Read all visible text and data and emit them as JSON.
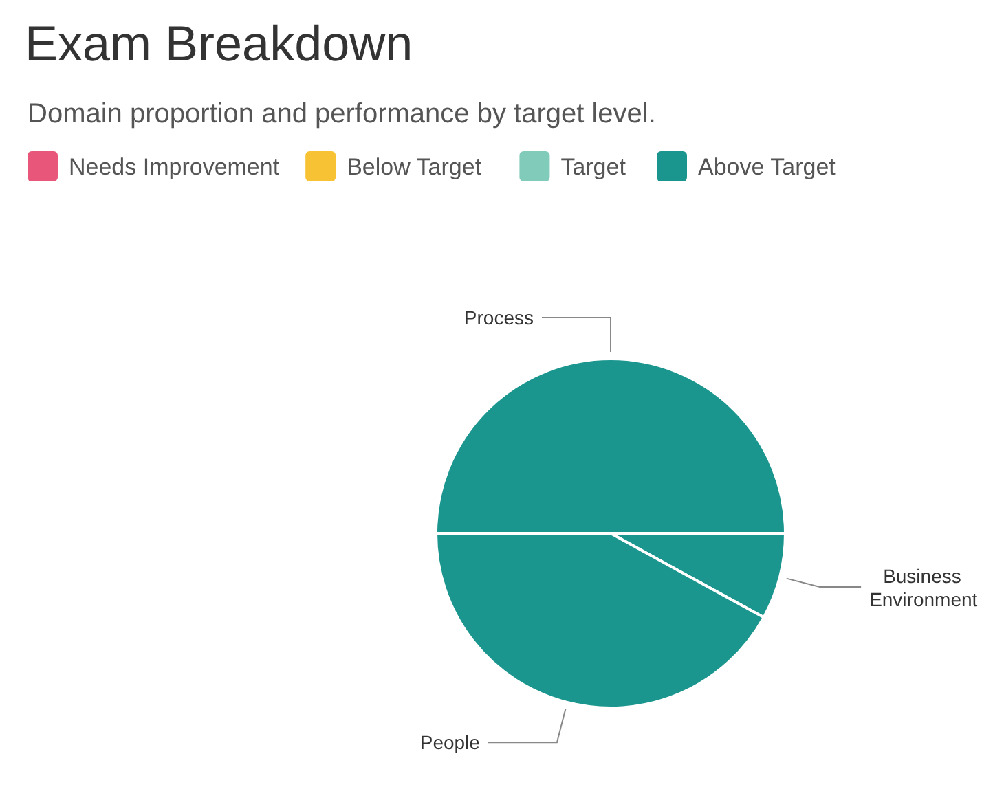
{
  "chart_data": {
    "type": "pie",
    "title": "Exam Breakdown",
    "subtitle": "Domain proportion and performance by target level.",
    "categories": [
      "Process",
      "Business Environment",
      "People"
    ],
    "values": [
      50,
      8,
      42
    ],
    "colors": [
      "#1a968f",
      "#1a968f",
      "#1a968f"
    ],
    "annotations": [
      "Needs Improvement",
      "Below Target",
      "Target",
      "Above Target"
    ]
  }
}
